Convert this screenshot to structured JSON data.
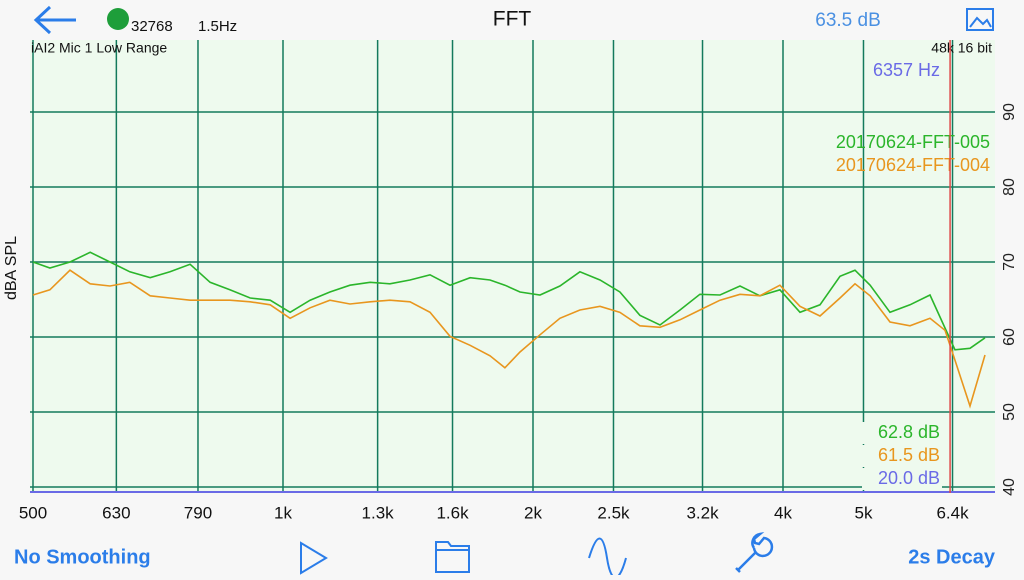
{
  "header": {
    "title": "FFT",
    "fft_size": "32768",
    "resolution": "1.5Hz",
    "level": "63.5 dB"
  },
  "chart_data": {
    "type": "line",
    "input": "iAI2 Mic 1 Low Range",
    "format": "48k 16 bit",
    "y_label": "dBA SPL",
    "x_scale": "log",
    "grid": true,
    "grid_color": "#137a5c",
    "background": "#eefaee",
    "xlim": [
      500,
      7200
    ],
    "ylim": [
      39.2,
      99.6
    ],
    "xticks": [
      500,
      630,
      790,
      {
        "value": 1000,
        "label": "1k"
      },
      {
        "value": 1300,
        "label": "1.3k"
      },
      {
        "value": 1600,
        "label": "1.6k"
      },
      {
        "value": 2000,
        "label": "2k"
      },
      {
        "value": 2500,
        "label": "2.5k"
      },
      {
        "value": 3200,
        "label": "3.2k"
      },
      {
        "value": 4000,
        "label": "4k"
      },
      {
        "value": 5000,
        "label": "5k"
      },
      {
        "value": 6400,
        "label": "6.4k"
      }
    ],
    "yticks": [
      40,
      50,
      60,
      70,
      80,
      90
    ],
    "x": [
      500,
      524,
      554,
      586,
      619,
      654,
      692,
      731,
      773,
      817,
      863,
      913,
      965,
      1020,
      1078,
      1139,
      1204,
      1273,
      1345,
      1422,
      1503,
      1589,
      1680,
      1775,
      1850,
      1929,
      2039,
      2155,
      2278,
      2408,
      2545,
      2690,
      2844,
      3006,
      3177,
      3359,
      3550,
      3752,
      3966,
      4193,
      4432,
      4685,
      4884,
      5092,
      5382,
      5689,
      6012,
      6268,
      6444,
      6718,
      7004
    ],
    "series": [
      {
        "name": "20170624-FFT-005",
        "color": "#2bb52b",
        "values": [
          70.0,
          69.2,
          70.0,
          71.3,
          70.0,
          68.7,
          67.9,
          68.7,
          69.7,
          67.3,
          66.3,
          65.2,
          64.9,
          63.3,
          64.9,
          66.0,
          66.9,
          67.3,
          67.1,
          67.6,
          68.3,
          66.9,
          67.9,
          67.6,
          66.9,
          66.0,
          65.6,
          66.8,
          68.7,
          67.6,
          66.0,
          62.9,
          61.6,
          63.6,
          65.7,
          65.6,
          66.8,
          65.5,
          66.3,
          63.3,
          64.3,
          68.1,
          68.9,
          66.9,
          63.3,
          64.3,
          65.6,
          61.2,
          58.3,
          58.5,
          59.9
        ]
      },
      {
        "name": "20170624-FFT-004",
        "color": "#e8961e",
        "values": [
          65.6,
          66.3,
          68.9,
          67.1,
          66.8,
          67.3,
          65.5,
          65.2,
          64.9,
          64.9,
          64.9,
          64.7,
          64.3,
          62.5,
          63.9,
          64.9,
          64.4,
          64.7,
          64.9,
          64.7,
          63.3,
          60.1,
          58.9,
          57.5,
          55.9,
          58.0,
          60.3,
          62.5,
          63.6,
          64.1,
          63.3,
          61.5,
          61.3,
          62.3,
          63.6,
          64.9,
          65.7,
          65.5,
          66.9,
          64.1,
          62.8,
          65.2,
          67.1,
          65.5,
          62.0,
          61.5,
          62.5,
          60.9,
          56.9,
          50.8,
          57.6
        ]
      }
    ],
    "cursor": {
      "value": 6357,
      "label": "6357 Hz",
      "color": "#e04848",
      "label_color": "#6a6ae6",
      "readouts": [
        {
          "label": "62.8 dB",
          "color": "#2bb52b"
        },
        {
          "label": "61.5 dB",
          "color": "#e8961e"
        },
        {
          "label": "20.0 dB",
          "color": "#6a6ae6"
        }
      ]
    }
  },
  "toolbar": {
    "smoothing": "No Smoothing",
    "decay": "2s Decay"
  }
}
